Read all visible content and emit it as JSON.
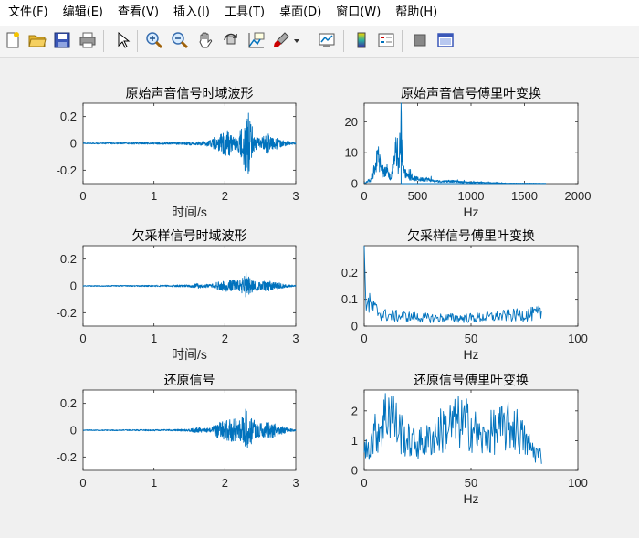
{
  "menubar": {
    "items": [
      "文件(F)",
      "编辑(E)",
      "查看(V)",
      "插入(I)",
      "工具(T)",
      "桌面(D)",
      "窗口(W)",
      "帮助(H)"
    ]
  },
  "toolbar": {
    "icons": [
      "new-figure-icon",
      "open-file-icon",
      "save-icon",
      "print-icon",
      "pointer-icon",
      "zoom-in-icon",
      "zoom-out-icon",
      "pan-hand-icon",
      "rotate-3d-icon",
      "data-cursor-icon",
      "brush-icon",
      "brush-dropdown-icon",
      "link-plot-icon",
      "colorbar-icon",
      "legend-icon",
      "hide-plot-tools-icon",
      "show-plot-tools-icon"
    ]
  },
  "colors": {
    "line": "#0072bd",
    "axes_bg": "#ffffff",
    "figure_bg": "#f0f0f0"
  },
  "chart_data": [
    {
      "type": "line",
      "title": "原始声音信号时域波形",
      "xlabel": "时间/s",
      "ylabel": "",
      "xlim": [
        0,
        3
      ],
      "ylim": [
        -0.3,
        0.3
      ],
      "xticks": [
        "0",
        "1",
        "2",
        "3"
      ],
      "yticks": [
        "-0.2",
        "0",
        "0.2"
      ],
      "envelope": {
        "x": [
          0,
          0.2,
          0.4,
          0.6,
          0.8,
          1.0,
          1.2,
          1.4,
          1.5,
          1.6,
          1.7,
          1.8,
          1.9,
          1.95,
          2.0,
          2.05,
          2.1,
          2.15,
          2.2,
          2.25,
          2.3,
          2.35,
          2.4,
          2.45,
          2.5,
          2.55,
          2.6,
          2.65,
          2.7,
          2.75,
          2.8,
          2.85,
          2.9,
          2.95,
          3.0
        ],
        "amp": [
          0.004,
          0.005,
          0.006,
          0.006,
          0.008,
          0.007,
          0.008,
          0.01,
          0.014,
          0.012,
          0.015,
          0.03,
          0.06,
          0.07,
          0.09,
          0.11,
          0.06,
          0.05,
          0.08,
          0.15,
          0.24,
          0.22,
          0.1,
          0.05,
          0.03,
          0.06,
          0.08,
          0.05,
          0.04,
          0.05,
          0.025,
          0.02,
          0.015,
          0.01,
          0.005
        ]
      }
    },
    {
      "type": "line",
      "title": "原始声音信号傅里叶变换",
      "xlabel": "Hz",
      "ylabel": "",
      "xlim": [
        0,
        2000
      ],
      "ylim": [
        0,
        26
      ],
      "xticks": [
        "0",
        "500",
        "1000",
        "1500",
        "2000"
      ],
      "yticks": [
        "0",
        "10",
        "20"
      ],
      "peaks": {
        "x": [
          0,
          60,
          100,
          130,
          150,
          175,
          210,
          250,
          280,
          300,
          320,
          345,
          370,
          400,
          430,
          470,
          520,
          580,
          650,
          720,
          800,
          900,
          1000,
          1100,
          1200,
          1300,
          1450,
          1600,
          1700
        ],
        "y": [
          0.3,
          1.5,
          6,
          15,
          9,
          4,
          7,
          2,
          12,
          16,
          8,
          26,
          6,
          4,
          3,
          2.5,
          2,
          2.2,
          1.3,
          1,
          1.2,
          0.8,
          0.6,
          0.5,
          0.4,
          0.2,
          0.1,
          0.1,
          0.05
        ]
      }
    },
    {
      "type": "line",
      "title": "欠采样信号时域波形",
      "xlabel": "时间/s",
      "ylabel": "",
      "xlim": [
        0,
        3
      ],
      "ylim": [
        -0.3,
        0.3
      ],
      "xticks": [
        "0",
        "1",
        "2",
        "3"
      ],
      "yticks": [
        "-0.2",
        "0",
        "0.2"
      ],
      "envelope": {
        "x": [
          0,
          0.4,
          0.8,
          1.2,
          1.5,
          1.6,
          1.8,
          1.9,
          2.0,
          2.1,
          2.2,
          2.25,
          2.3,
          2.35,
          2.4,
          2.5,
          2.6,
          2.7,
          2.8,
          2.9,
          3.0
        ],
        "amp": [
          0.003,
          0.004,
          0.005,
          0.006,
          0.008,
          0.02,
          0.01,
          0.03,
          0.04,
          0.05,
          0.04,
          0.06,
          0.1,
          0.07,
          0.04,
          0.03,
          0.04,
          0.03,
          0.02,
          0.01,
          0.004
        ]
      }
    },
    {
      "type": "line",
      "title": "欠采样信号傅里叶变换",
      "xlabel": "Hz",
      "ylabel": "",
      "xlim": [
        0,
        100
      ],
      "ylim": [
        0,
        0.3
      ],
      "xticks": [
        "0",
        "50",
        "100"
      ],
      "yticks": [
        "0",
        "0.1",
        "0.2"
      ],
      "trend": {
        "x": [
          0,
          1,
          5,
          10,
          20,
          30,
          40,
          50,
          60,
          70,
          80,
          83
        ],
        "y": [
          0.3,
          0.09,
          0.06,
          0.04,
          0.035,
          0.03,
          0.03,
          0.03,
          0.035,
          0.04,
          0.045,
          0.05
        ]
      }
    },
    {
      "type": "line",
      "title": "还原信号",
      "xlabel": "",
      "ylabel": "",
      "xlim": [
        0,
        3
      ],
      "ylim": [
        -0.3,
        0.3
      ],
      "xticks": [
        "0",
        "1",
        "2",
        "3"
      ],
      "yticks": [
        "-0.2",
        "0",
        "0.2"
      ],
      "envelope": {
        "x": [
          0,
          0.4,
          0.8,
          1.2,
          1.5,
          1.6,
          1.8,
          1.9,
          2.0,
          2.1,
          2.2,
          2.25,
          2.3,
          2.35,
          2.4,
          2.5,
          2.6,
          2.7,
          2.8,
          2.9,
          3.0
        ],
        "amp": [
          0.003,
          0.004,
          0.005,
          0.006,
          0.008,
          0.02,
          0.015,
          0.06,
          0.07,
          0.09,
          0.08,
          0.1,
          0.17,
          0.12,
          0.08,
          0.05,
          0.06,
          0.05,
          0.03,
          0.015,
          0.005
        ]
      }
    },
    {
      "type": "line",
      "title": "还原信号傅里叶变换",
      "xlabel": "Hz",
      "ylabel": "",
      "xlim": [
        0,
        100
      ],
      "ylim": [
        0,
        2.7
      ],
      "xticks": [
        "0",
        "50",
        "100"
      ],
      "yticks": [
        "0",
        "1",
        "2"
      ],
      "trend": {
        "x": [
          0,
          5,
          10,
          12,
          15,
          20,
          25,
          30,
          35,
          40,
          45,
          50,
          55,
          60,
          65,
          70,
          75,
          80,
          83
        ],
        "y": [
          0.6,
          1.2,
          1.8,
          2.2,
          1.5,
          1.0,
          0.9,
          1.0,
          1.3,
          1.5,
          1.6,
          1.5,
          1.0,
          1.3,
          1.4,
          1.5,
          1.0,
          0.6,
          0.5
        ]
      }
    }
  ]
}
